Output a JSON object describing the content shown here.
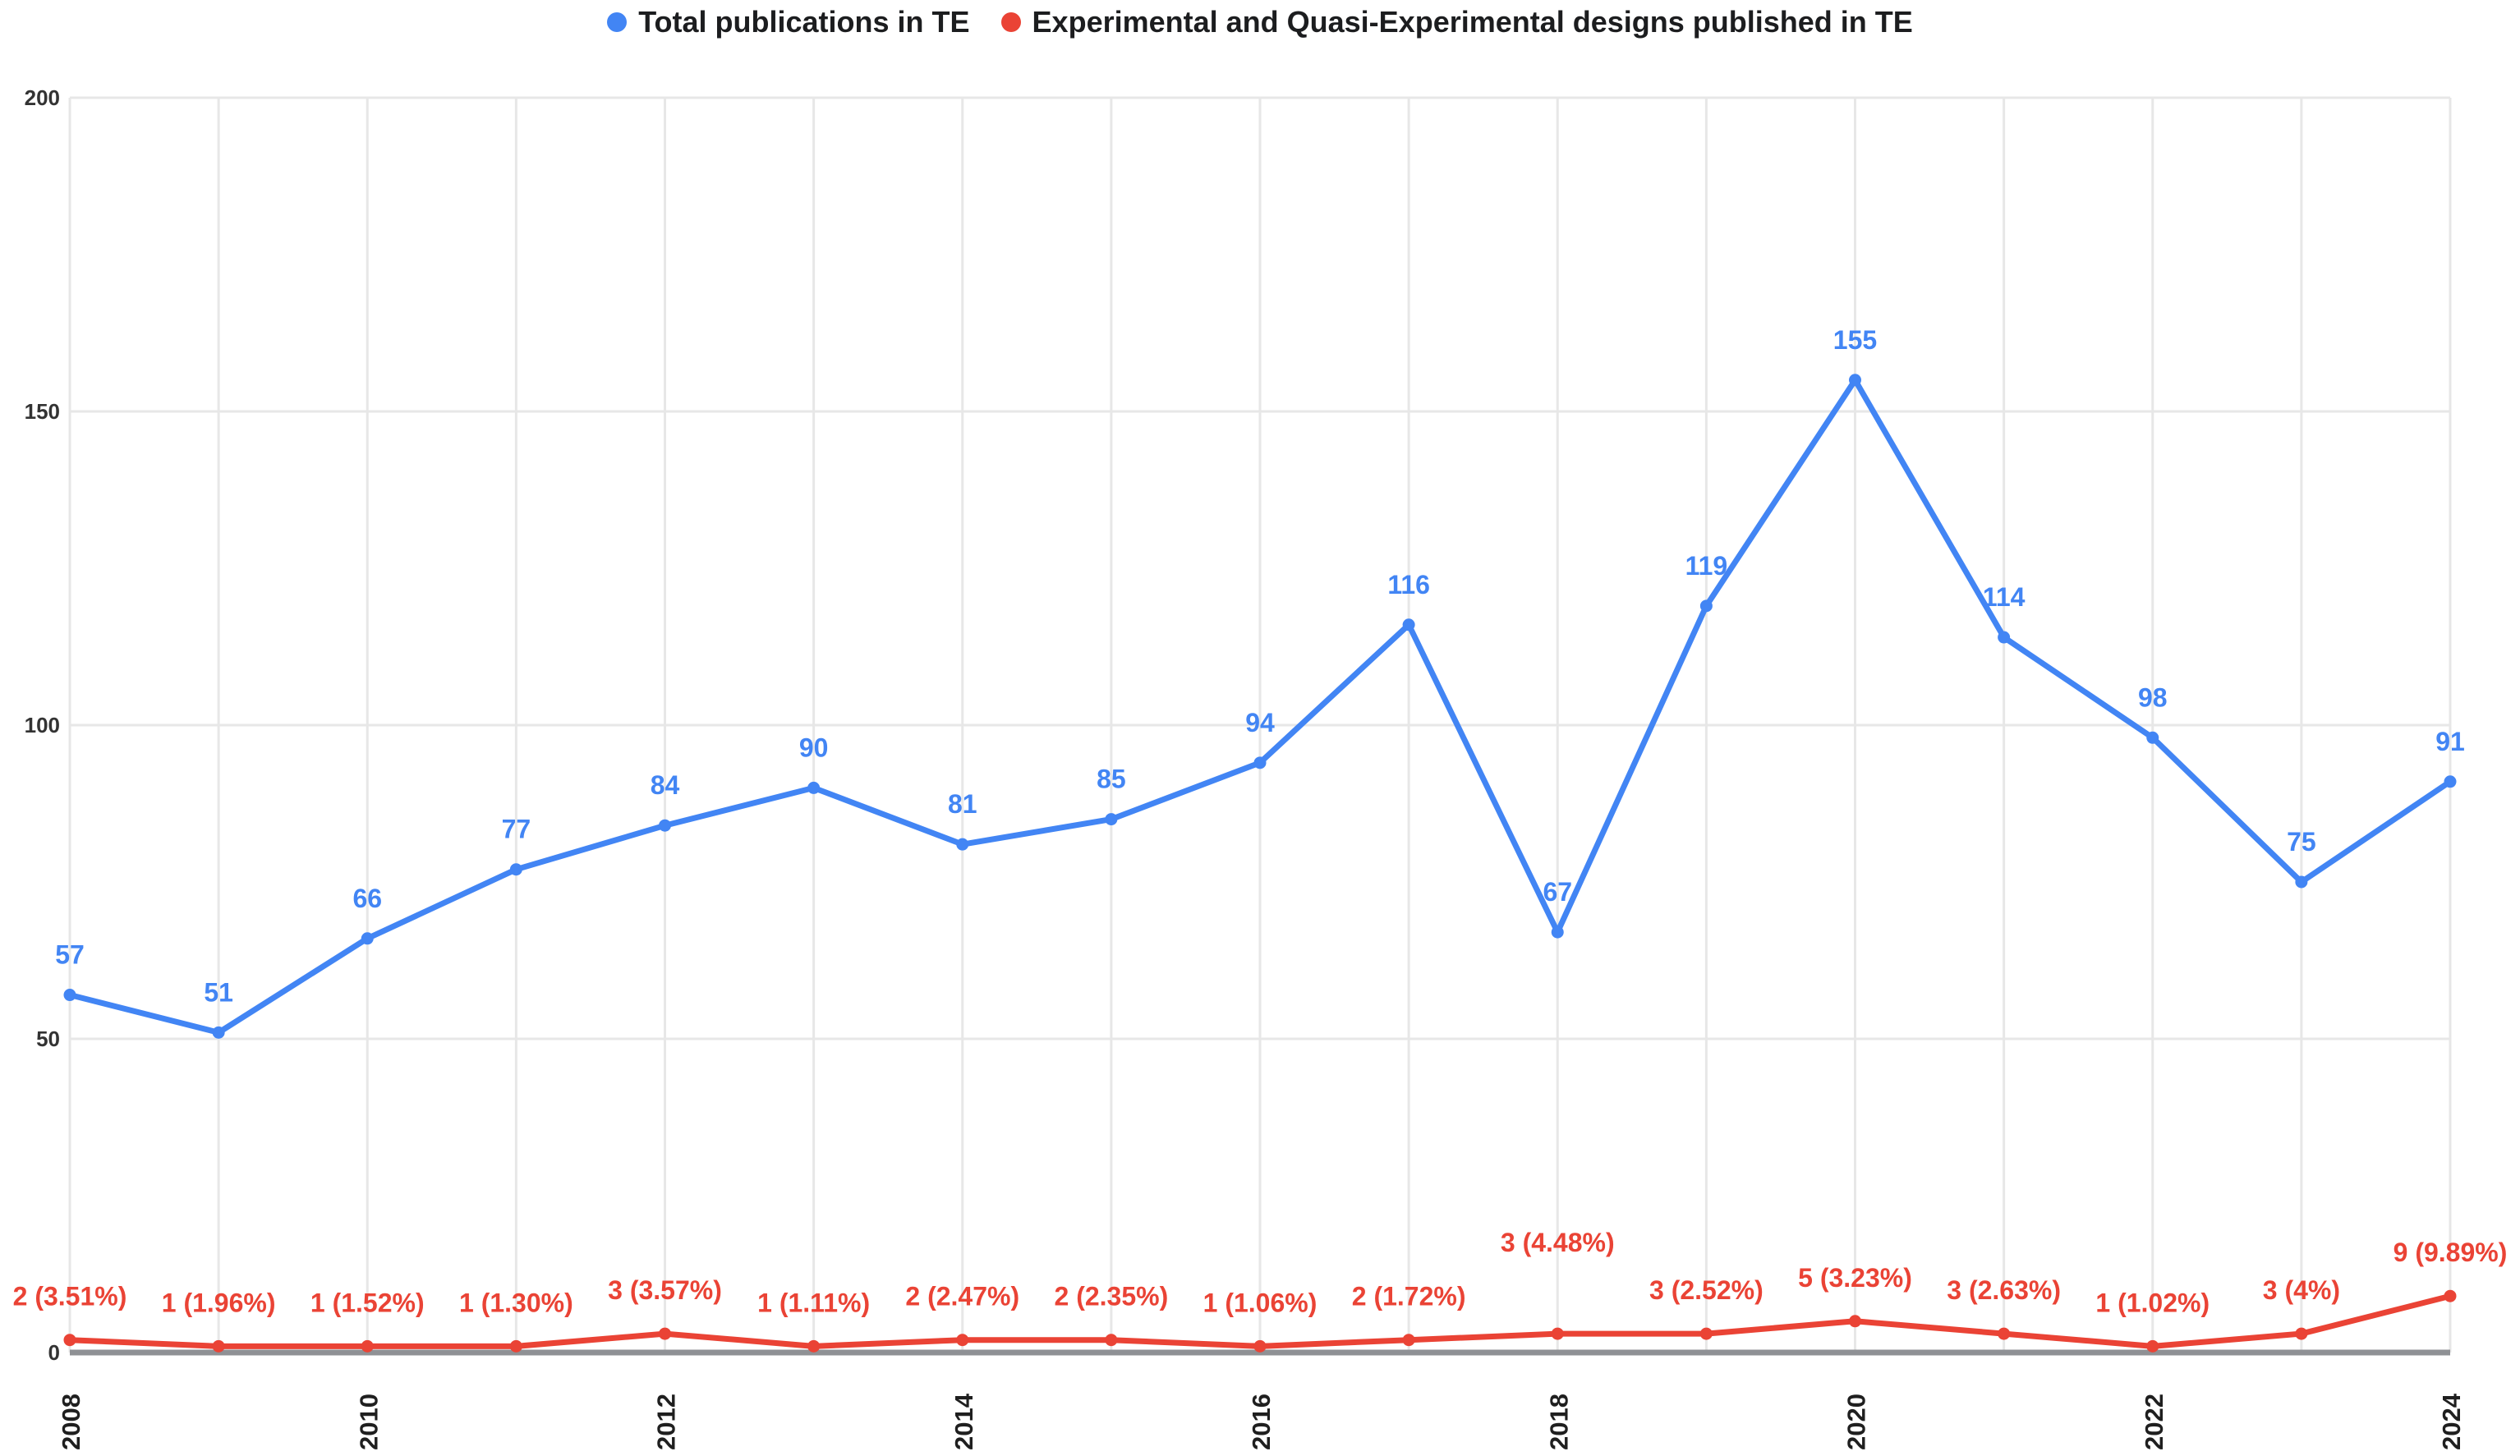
{
  "legend": {
    "items": [
      {
        "label": "Total publications in TE",
        "color": "#4285F4"
      },
      {
        "label": "Experimental and Quasi-Experimental designs published in TE",
        "color": "#EA4335"
      }
    ]
  },
  "axes": {
    "y_tick_labels": [
      "0",
      "50",
      "100",
      "150",
      "200"
    ],
    "x_tick_labels": [
      "2008",
      "2010",
      "2012",
      "2014",
      "2016",
      "2018",
      "2020",
      "2022",
      "2024"
    ]
  },
  "chart_data": {
    "type": "line",
    "title": "",
    "xlabel": "",
    "ylabel": "",
    "x": [
      2008,
      2009,
      2010,
      2011,
      2012,
      2013,
      2014,
      2015,
      2016,
      2017,
      2018,
      2019,
      2020,
      2021,
      2022,
      2023,
      2024
    ],
    "series": [
      {
        "name": "Total publications in TE",
        "color": "#4285F4",
        "values": [
          57,
          51,
          66,
          77,
          84,
          90,
          81,
          85,
          94,
          116,
          67,
          119,
          155,
          114,
          98,
          75,
          91
        ],
        "point_labels": [
          "57",
          "51",
          "66",
          "77",
          "84",
          "90",
          "81",
          "85",
          "94",
          "116",
          "67",
          "119",
          "155",
          "114",
          "98",
          "75",
          "91"
        ]
      },
      {
        "name": "Experimental and Quasi-Experimental designs published in TE",
        "color": "#EA4335",
        "values": [
          2,
          1,
          1,
          1,
          3,
          1,
          2,
          2,
          1,
          2,
          3,
          3,
          5,
          3,
          1,
          3,
          9
        ],
        "point_labels": [
          "2 (3.51%)",
          "1 (1.96%)",
          "1 (1.52%)",
          "1 (1.30%)",
          "3 (3.57%)",
          "1 (1.11%)",
          "2 (2.47%)",
          "2 (2.35%)",
          "1 (1.06%)",
          "2 (1.72%)",
          "3 (4.48%)",
          "3 (2.52%)",
          "5 (3.23%)",
          "3 (2.63%)",
          "1 (1.02%)",
          "3 (4%)",
          "9 (9.89%)"
        ]
      }
    ],
    "ylim": [
      0,
      200
    ],
    "y_ticks": [
      0,
      50,
      100,
      150,
      200
    ],
    "x_ticks_shown_every_years": 2,
    "grid": true,
    "legend_position": "top",
    "x_tick_rotation_deg": -90,
    "label_dy_overrides": {
      "series_1": {
        "10": -100
      }
    },
    "style": {
      "gridline_color": "#e7e7e7",
      "baseline_color": "#8f9195",
      "axis_text_color": "#333333",
      "x_text_color": "#1f1f1f",
      "background": "#ffffff"
    }
  }
}
